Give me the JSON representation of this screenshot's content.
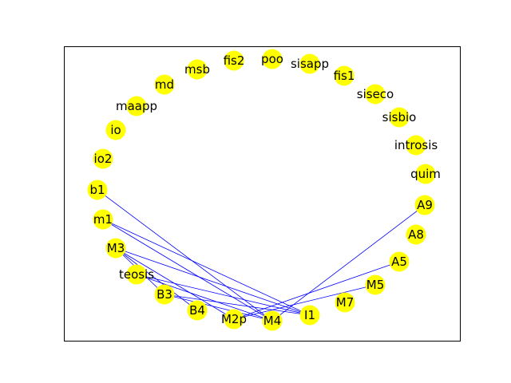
{
  "colors": {
    "node": "#ffff00",
    "edge": "#0000ff",
    "frame": "#000000",
    "background": "#ffffff"
  },
  "nodes": [
    {
      "id": "poo",
      "label": "poo"
    },
    {
      "id": "sisapp",
      "label": "sisapp"
    },
    {
      "id": "fis1",
      "label": "fis1"
    },
    {
      "id": "siseco",
      "label": "siseco"
    },
    {
      "id": "sisbio",
      "label": "sisbio"
    },
    {
      "id": "introsis",
      "label": "introsis"
    },
    {
      "id": "quim",
      "label": "quim"
    },
    {
      "id": "A9",
      "label": "A9"
    },
    {
      "id": "A8",
      "label": "A8"
    },
    {
      "id": "A5",
      "label": "A5"
    },
    {
      "id": "M5",
      "label": "M5"
    },
    {
      "id": "M7",
      "label": "M7"
    },
    {
      "id": "I1",
      "label": "I1"
    },
    {
      "id": "M4",
      "label": "M4"
    },
    {
      "id": "M2p",
      "label": "M2p"
    },
    {
      "id": "B4",
      "label": "B4"
    },
    {
      "id": "B3",
      "label": "B3"
    },
    {
      "id": "teosis",
      "label": "teosis"
    },
    {
      "id": "M3",
      "label": "M3"
    },
    {
      "id": "m1",
      "label": "m1"
    },
    {
      "id": "b1",
      "label": "b1"
    },
    {
      "id": "io2",
      "label": "io2"
    },
    {
      "id": "io",
      "label": "io"
    },
    {
      "id": "maapp",
      "label": "maapp"
    },
    {
      "id": "md",
      "label": "md"
    },
    {
      "id": "msb",
      "label": "msb"
    },
    {
      "id": "fis2",
      "label": "fis2"
    }
  ],
  "edges": [
    [
      "b1",
      "M4"
    ],
    [
      "m1",
      "M4"
    ],
    [
      "m1",
      "I1"
    ],
    [
      "M3",
      "B3"
    ],
    [
      "M3",
      "B4"
    ],
    [
      "M3",
      "I1"
    ],
    [
      "M3",
      "M2p"
    ],
    [
      "teosis",
      "M4"
    ],
    [
      "teosis",
      "I1"
    ],
    [
      "B3",
      "M4"
    ],
    [
      "B3",
      "I1"
    ],
    [
      "M2p",
      "A5"
    ],
    [
      "M2p",
      "M5"
    ],
    [
      "M4",
      "A9"
    ]
  ]
}
